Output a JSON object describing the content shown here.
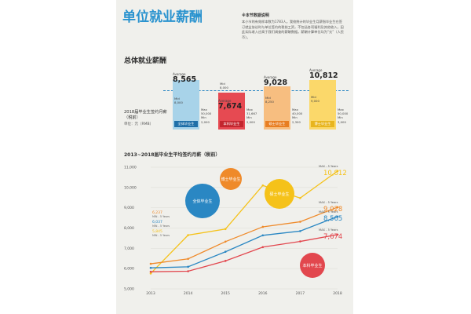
{
  "header": {
    "title": "单位就业薪酬",
    "note_title": "※本节数据说明",
    "note_body": "本小节的有效样本数为1783人。我校统计的毕业生月薪指毕业生在签订就业协议时与单位签约的税前工资，不包括各项福利及其他收入，因此实际收入应高于我们调查的薪酬数据。薪酬计算单位均为“元”（人民币）。"
  },
  "overall": {
    "section_title": "总体就业薪酬",
    "row_label": "2018届毕业生签约月薪（税前）",
    "unit": "单位：元（RMB）",
    "groups": [
      {
        "name": "全体毕业生",
        "avg_label": "Average",
        "avg": "8,565",
        "mid_label": "Mid",
        "mid": "8,000",
        "max_label": "Max",
        "max": "50,000",
        "min_label": "Min",
        "min": "2,000",
        "color": "#a8d3e9",
        "chip": "#1e6fa8"
      },
      {
        "name": "本科毕业生",
        "avg_label": "Average",
        "avg": "7,674",
        "mid_label": "Mid",
        "mid": "8,000",
        "max_label": "Max",
        "max": "31,667",
        "min_label": "Min",
        "min": "2,000",
        "color": "#e64a52",
        "chip": "#c3262e"
      },
      {
        "name": "硕士毕业生",
        "avg_label": "Average",
        "avg": "9,028",
        "mid_label": "Mid",
        "mid": "8,250",
        "max_label": "Max",
        "max": "40,000",
        "min_label": "Min",
        "min": "2,300",
        "color": "#f7be80",
        "chip": "#e87e22"
      },
      {
        "name": "博士毕业生",
        "avg_label": "Average",
        "avg": "10,812",
        "mid_label": "Mid",
        "mid": "9,000",
        "max_label": "Max",
        "max": "50,000",
        "min_label": "Min",
        "min": "3,000",
        "color": "#fbd86a",
        "chip": "#e8b51e"
      }
    ]
  },
  "chart_data": {
    "type": "line",
    "title": "2013~2018届毕业生平均签约月薪（税前）",
    "x": [
      "2013",
      "2014",
      "2015",
      "2016",
      "2017",
      "2018"
    ],
    "ylim": [
      5000,
      11000
    ],
    "yticks": [
      "5,000",
      "6,000",
      "7,000",
      "8,000",
      "9,000",
      "10,000",
      "11,000"
    ],
    "series": [
      {
        "name": "博士毕业生",
        "color": "#f5c21a",
        "values": [
          5762,
          7650,
          7950,
          10100,
          9480,
          10812
        ]
      },
      {
        "name": "硕士毕业生",
        "color": "#ef8a2a",
        "values": [
          6237,
          6480,
          7330,
          8060,
          8310,
          9028
        ]
      },
      {
        "name": "全体毕业生",
        "color": "#2a87c3",
        "values": [
          6037,
          6090,
          6830,
          7640,
          7850,
          8565
        ]
      },
      {
        "name": "本科毕业生",
        "color": "#e2474e",
        "values": [
          5845,
          5870,
          6380,
          7060,
          7340,
          7674
        ]
      }
    ],
    "annotations": {
      "max_label": "MAX - 5 Years",
      "min_label": "MIN - 5 Years",
      "start_values": [
        "6,237",
        "6,037",
        "5,845"
      ],
      "end_values": [
        "10,812",
        "9,028",
        "8,565",
        "7,674"
      ],
      "bubbles": [
        "全体毕业生",
        "博士毕业生",
        "硕士毕业生",
        "本科毕业生"
      ]
    }
  }
}
